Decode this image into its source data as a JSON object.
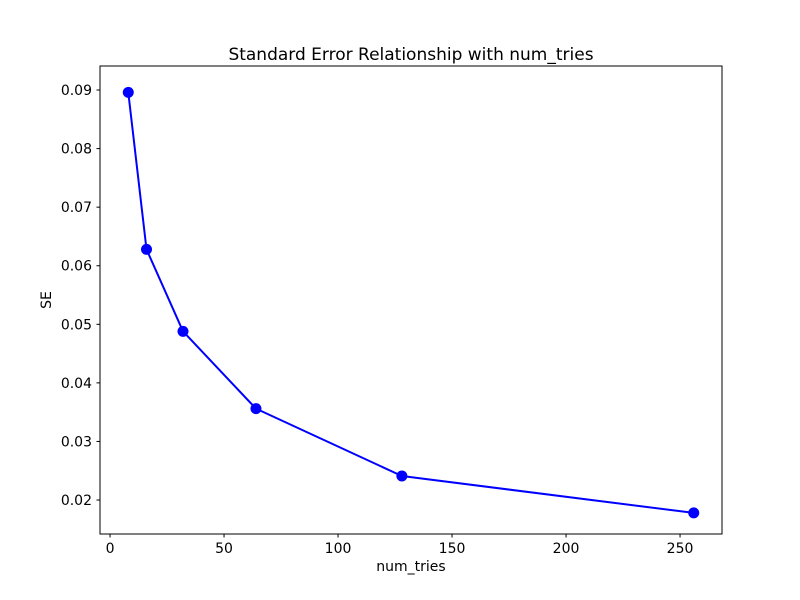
{
  "chart_data": {
    "type": "line",
    "title": "Standard Error Relationship with num_tries",
    "xlabel": "num_tries",
    "ylabel": "SE",
    "x": [
      8,
      16,
      32,
      64,
      128,
      256
    ],
    "y": [
      0.0896,
      0.0628,
      0.0488,
      0.0356,
      0.0241,
      0.0178
    ],
    "line_color": "#0000ff",
    "marker": "o",
    "marker_radius": 5.5,
    "line_width": 2,
    "xlim": [
      -4.4,
      268.4
    ],
    "ylim": [
      0.0142,
      0.0941
    ],
    "xticks": {
      "values": [
        0,
        50,
        100,
        150,
        200,
        250
      ],
      "labels": [
        "0",
        "50",
        "100",
        "150",
        "200",
        "250"
      ]
    },
    "yticks": {
      "values": [
        0.02,
        0.03,
        0.04,
        0.05,
        0.06,
        0.07,
        0.08,
        0.09
      ],
      "labels": [
        "0.02",
        "0.03",
        "0.04",
        "0.05",
        "0.06",
        "0.07",
        "0.08",
        "0.09"
      ]
    },
    "grid": false,
    "legend": null,
    "spine_color": "#000000",
    "background": "#ffffff"
  }
}
